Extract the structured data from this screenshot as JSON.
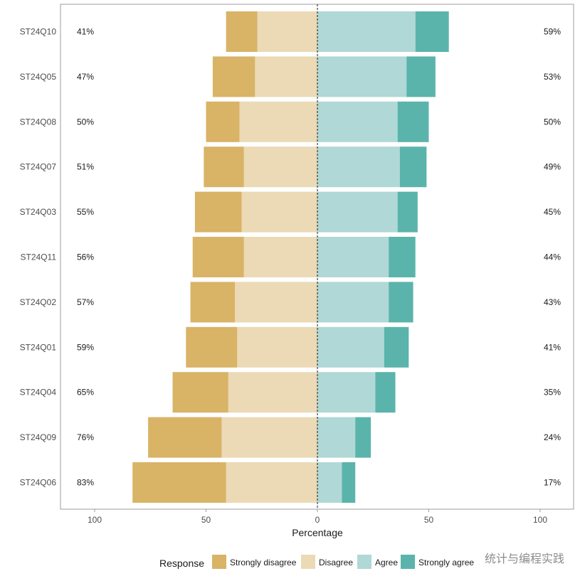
{
  "chart_data": {
    "type": "bar",
    "orientation": "horizontal",
    "stacked": "diverging",
    "xlabel": "Percentage",
    "xlim": [
      -100,
      100
    ],
    "xticks": [
      -100,
      -50,
      0,
      50,
      100
    ],
    "xtick_labels": [
      "100",
      "50",
      "0",
      "50",
      "100"
    ],
    "categories": [
      "ST24Q10",
      "ST24Q05",
      "ST24Q08",
      "ST24Q07",
      "ST24Q03",
      "ST24Q11",
      "ST24Q02",
      "ST24Q01",
      "ST24Q04",
      "ST24Q09",
      "ST24Q06"
    ],
    "series": [
      {
        "name": "Strongly disagree",
        "color": "#d9b366",
        "side": "left",
        "values": [
          14,
          19,
          15,
          18,
          21,
          23,
          20,
          23,
          25,
          33,
          42
        ]
      },
      {
        "name": "Disagree",
        "color": "#ebdab5",
        "side": "left",
        "values": [
          27,
          28,
          35,
          33,
          34,
          33,
          37,
          36,
          40,
          43,
          41
        ]
      },
      {
        "name": "Agree",
        "color": "#afd8d6",
        "side": "right",
        "values": [
          44,
          40,
          36,
          37,
          36,
          32,
          32,
          30,
          26,
          17,
          11
        ]
      },
      {
        "name": "Strongly agree",
        "color": "#5ab4ac",
        "side": "right",
        "values": [
          15,
          13,
          14,
          12,
          9,
          12,
          11,
          11,
          9,
          7,
          6
        ]
      }
    ],
    "left_totals": [
      "41%",
      "47%",
      "50%",
      "51%",
      "55%",
      "56%",
      "57%",
      "59%",
      "65%",
      "76%",
      "83%"
    ],
    "right_totals": [
      "59%",
      "53%",
      "50%",
      "49%",
      "45%",
      "44%",
      "43%",
      "41%",
      "35%",
      "24%",
      "17%"
    ],
    "legend": {
      "title": "Response",
      "position": "bottom"
    },
    "grid": false
  },
  "watermark": "统计与编程实践"
}
